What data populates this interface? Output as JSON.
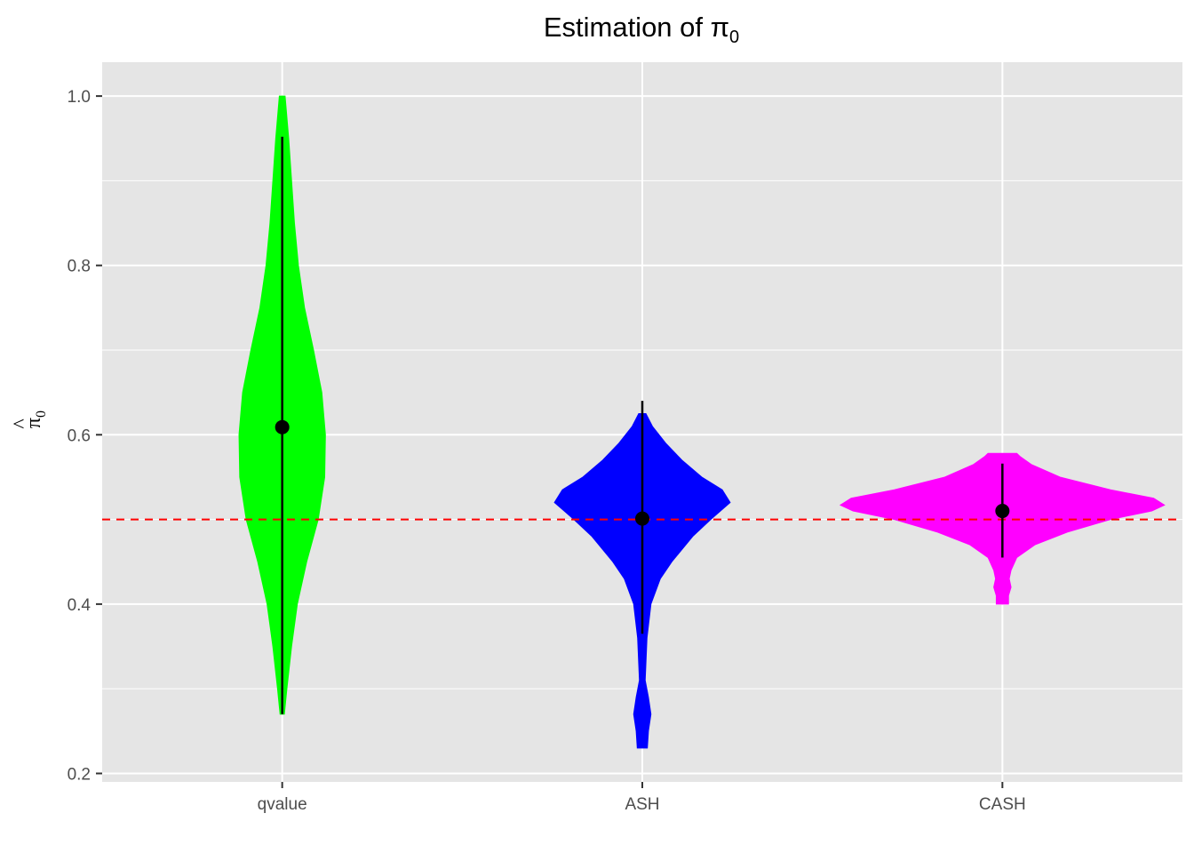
{
  "chart_data": {
    "type": "violin",
    "title": "Estimation of π",
    "title_subscript": "0",
    "ylabel": "π",
    "ylabel_hat": "^",
    "ylabel_subscript": "0",
    "ylim": [
      0.19,
      1.04
    ],
    "y_ticks": [
      0.2,
      0.4,
      0.6,
      0.8,
      1.0
    ],
    "y_tick_labels": [
      "0.2",
      "0.4",
      "0.6",
      "0.8",
      "1.0"
    ],
    "categories": [
      "qvalue",
      "ASH",
      "CASH"
    ],
    "reference_line": {
      "y": 0.5,
      "color": "#ff0000",
      "style": "dashed"
    },
    "grid": true,
    "background": "#e5e5e5",
    "series": [
      {
        "category": "qvalue",
        "color": "#00ff00",
        "min": 0.27,
        "max": 1.0,
        "mean": 0.609,
        "sd_low": 0.27,
        "sd_high": 0.952,
        "density": [
          [
            0.27,
            0.006
          ],
          [
            0.3,
            0.013
          ],
          [
            0.35,
            0.026
          ],
          [
            0.4,
            0.042
          ],
          [
            0.45,
            0.068
          ],
          [
            0.5,
            0.1
          ],
          [
            0.55,
            0.118
          ],
          [
            0.6,
            0.12
          ],
          [
            0.65,
            0.11
          ],
          [
            0.7,
            0.087
          ],
          [
            0.75,
            0.062
          ],
          [
            0.8,
            0.045
          ],
          [
            0.85,
            0.034
          ],
          [
            0.9,
            0.026
          ],
          [
            0.95,
            0.018
          ],
          [
            1.0,
            0.008
          ]
        ]
      },
      {
        "category": "ASH",
        "color": "#0000ff",
        "min": 0.23,
        "max": 0.625,
        "mean": 0.501,
        "sd_low": 0.365,
        "sd_high": 0.64,
        "density": [
          [
            0.23,
            0.014
          ],
          [
            0.25,
            0.017
          ],
          [
            0.27,
            0.024
          ],
          [
            0.29,
            0.017
          ],
          [
            0.31,
            0.008
          ],
          [
            0.33,
            0.01
          ],
          [
            0.36,
            0.013
          ],
          [
            0.4,
            0.024
          ],
          [
            0.43,
            0.05
          ],
          [
            0.45,
            0.082
          ],
          [
            0.48,
            0.14
          ],
          [
            0.5,
            0.19
          ],
          [
            0.52,
            0.244
          ],
          [
            0.535,
            0.222
          ],
          [
            0.55,
            0.165
          ],
          [
            0.57,
            0.11
          ],
          [
            0.59,
            0.065
          ],
          [
            0.61,
            0.028
          ],
          [
            0.625,
            0.01
          ]
        ]
      },
      {
        "category": "CASH",
        "color": "#ff00ff",
        "min": 0.4,
        "max": 0.578,
        "mean": 0.51,
        "sd_low": 0.455,
        "sd_high": 0.566,
        "density": [
          [
            0.4,
            0.017
          ],
          [
            0.41,
            0.017
          ],
          [
            0.42,
            0.024
          ],
          [
            0.43,
            0.019
          ],
          [
            0.44,
            0.024
          ],
          [
            0.455,
            0.04
          ],
          [
            0.47,
            0.09
          ],
          [
            0.485,
            0.18
          ],
          [
            0.5,
            0.3
          ],
          [
            0.51,
            0.415
          ],
          [
            0.517,
            0.45
          ],
          [
            0.525,
            0.42
          ],
          [
            0.535,
            0.3
          ],
          [
            0.55,
            0.16
          ],
          [
            0.565,
            0.08
          ],
          [
            0.574,
            0.05
          ],
          [
            0.578,
            0.04
          ]
        ]
      }
    ]
  }
}
